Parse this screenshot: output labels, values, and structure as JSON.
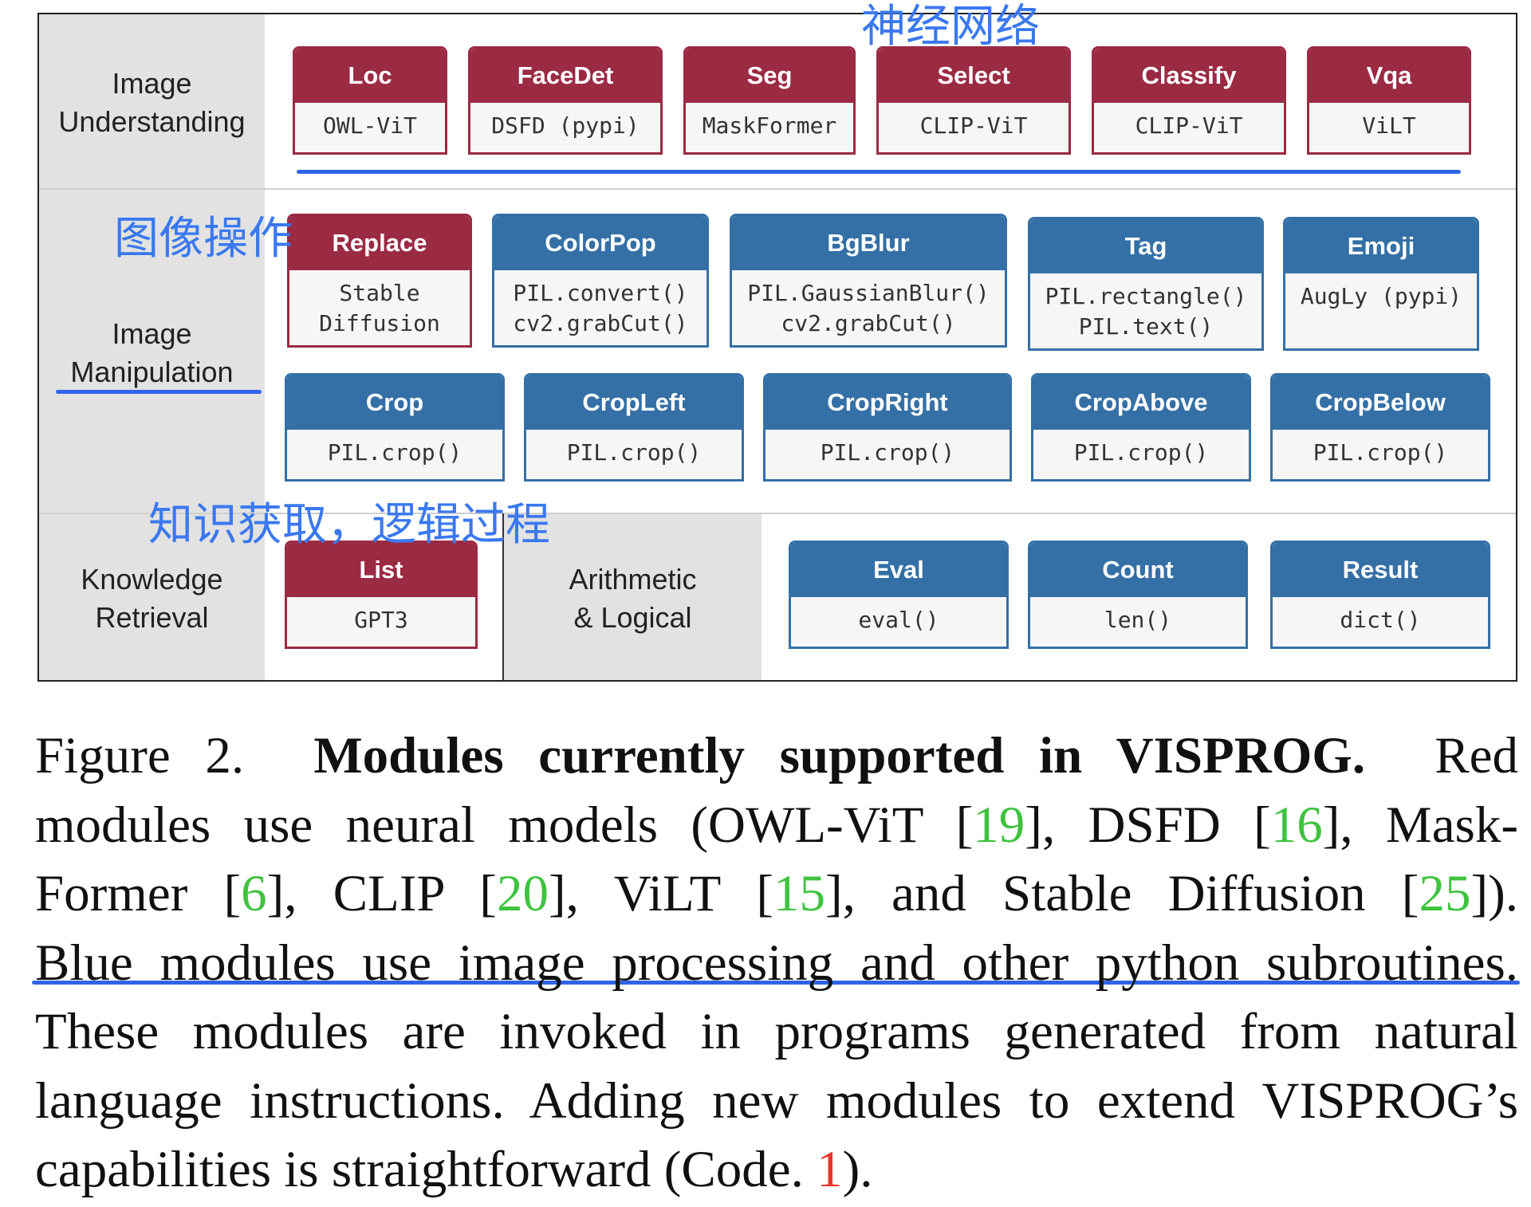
{
  "diagram": {
    "sections": {
      "image_understanding": "Image\nUnderstanding",
      "image_manipulation": "Image\nManipulation",
      "knowledge_retrieval": "Knowledge\nRetrieval",
      "arithmetic_logical": "Arithmetic\n& Logical"
    },
    "modules": {
      "loc": {
        "name": "Loc",
        "impl": "OWL-ViT",
        "color": "red"
      },
      "facedet": {
        "name": "FaceDet",
        "impl": "DSFD (pypi)",
        "color": "red"
      },
      "seg": {
        "name": "Seg",
        "impl": "MaskFormer",
        "color": "red"
      },
      "select": {
        "name": "Select",
        "impl": "CLIP-ViT",
        "color": "red"
      },
      "classify": {
        "name": "Classify",
        "impl": "CLIP-ViT",
        "color": "red"
      },
      "vqa": {
        "name": "Vqa",
        "impl": "ViLT",
        "color": "red"
      },
      "replace": {
        "name": "Replace",
        "impl": "Stable\nDiffusion",
        "color": "red"
      },
      "colorpop": {
        "name": "ColorPop",
        "impl": "PIL.convert()\ncv2.grabCut()",
        "color": "blue"
      },
      "bgblur": {
        "name": "BgBlur",
        "impl": "PIL.GaussianBlur()\ncv2.grabCut()",
        "color": "blue"
      },
      "tag": {
        "name": "Tag",
        "impl": "PIL.rectangle()\nPIL.text()",
        "color": "blue"
      },
      "emoji": {
        "name": "Emoji",
        "impl": "AugLy (pypi)",
        "color": "blue"
      },
      "crop": {
        "name": "Crop",
        "impl": "PIL.crop()",
        "color": "blue"
      },
      "cropleft": {
        "name": "CropLeft",
        "impl": "PIL.crop()",
        "color": "blue"
      },
      "cropright": {
        "name": "CropRight",
        "impl": "PIL.crop()",
        "color": "blue"
      },
      "cropabove": {
        "name": "CropAbove",
        "impl": "PIL.crop()",
        "color": "blue"
      },
      "cropbelow": {
        "name": "CropBelow",
        "impl": "PIL.crop()",
        "color": "blue"
      },
      "list": {
        "name": "List",
        "impl": "GPT3",
        "color": "red"
      },
      "eval": {
        "name": "Eval",
        "impl": "eval()",
        "color": "blue"
      },
      "count": {
        "name": "Count",
        "impl": "len()",
        "color": "blue"
      },
      "result": {
        "name": "Result",
        "impl": "dict()",
        "color": "blue"
      }
    },
    "colors": {
      "red_module": "#9b2a43",
      "blue_module": "#3470a6",
      "section_shade": "#e2e2e2"
    }
  },
  "annotations": {
    "neural_network": "神经网络",
    "image_operation": "图像操作",
    "knowledge_logic": "知识获取，逻辑过程",
    "color": "#3a78f0"
  },
  "caption": {
    "figure_label": "Figure 2.",
    "title_pre": "Modules currently supported in ",
    "title_prog_v": "V",
    "title_prog_is": "IS",
    "title_prog_p": "P",
    "title_prog_rog": "ROG",
    "title_end": ".",
    "l1_tail": "Red",
    "l2_a": "modules use neural models (OWL-ViT [",
    "cite_owlvit": "19",
    "l2_b": "], DSFD [",
    "cite_dsfd": "16",
    "l2_c": "], Mask-",
    "l3_a": "Former [",
    "cite_maskformer": "6",
    "l3_b": "], CLIP [",
    "cite_clip": "20",
    "l3_c": "], ViLT [",
    "cite_vilt": "15",
    "l3_d": "], and Stable Diffusion [",
    "cite_sd": "25",
    "l3_e": "]).",
    "l4": "Blue modules use image processing and other python subroutines.",
    "l5": "These modules are invoked in programs generated from natural",
    "l6_a": "language instructions. Adding new modules to extend ",
    "l6_v": "V",
    "l6_is": "IS",
    "l6_p": "P",
    "l6_rog": "ROG",
    "l6_b": "’s",
    "l7_a": "capabilities is straightforward (Code. ",
    "ref_code": "1",
    "l7_b": ")."
  }
}
